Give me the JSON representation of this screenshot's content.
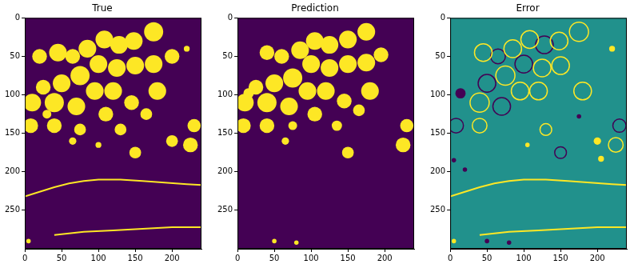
{
  "chart_data": [
    {
      "type": "image",
      "title": "True",
      "xlim": [
        0,
        240
      ],
      "ylim": [
        300,
        0
      ],
      "xticks": [
        0,
        50,
        100,
        150,
        200
      ],
      "yticks": [
        0,
        50,
        100,
        150,
        200,
        250
      ],
      "grid": false,
      "levels": [
        0,
        1
      ],
      "colors": [
        "#440154",
        "#fde725"
      ],
      "background": 0,
      "blobs": [
        {
          "value": 1,
          "x": [
            175,
            148,
            128,
            108,
            85,
            65,
            45,
            20,
            100,
            125,
            150,
            175,
            200,
            75,
            50,
            25,
            10,
            40,
            70,
            95,
            120,
            110,
            145,
            180,
            165,
            8,
            40,
            75,
            130,
            230,
            225,
            200,
            150,
            65,
            100,
            30,
            220,
            5
          ],
          "y": [
            18,
            30,
            35,
            28,
            40,
            50,
            45,
            50,
            60,
            65,
            62,
            60,
            50,
            75,
            85,
            90,
            110,
            110,
            115,
            95,
            95,
            125,
            110,
            95,
            125,
            140,
            140,
            145,
            145,
            140,
            165,
            160,
            175,
            160,
            165,
            125,
            40,
            290
          ],
          "r": [
            13,
            12,
            12,
            12,
            12,
            10,
            12,
            10,
            12,
            12,
            12,
            12,
            10,
            13,
            12,
            10,
            12,
            13,
            12,
            12,
            12,
            10,
            10,
            12,
            8,
            10,
            10,
            8,
            8,
            9,
            10,
            8,
            8,
            5,
            4,
            6,
            4,
            3
          ]
        }
      ],
      "lines": [
        {
          "value": 1,
          "x": [
            0,
            20,
            40,
            60,
            80,
            100,
            130,
            160,
            190,
            220,
            240
          ],
          "y": [
            232,
            226,
            220,
            215,
            212,
            210,
            210,
            212,
            214,
            216,
            217
          ]
        },
        {
          "value": 1,
          "x": [
            40,
            80,
            120,
            160,
            200,
            240
          ],
          "y": [
            282,
            278,
            276,
            274,
            272,
            272
          ]
        }
      ],
      "rings": []
    },
    {
      "type": "image",
      "title": "Prediction",
      "xlim": [
        0,
        240
      ],
      "ylim": [
        300,
        0
      ],
      "xticks": [
        0,
        50,
        100,
        150,
        200
      ],
      "yticks": [
        0,
        50,
        100,
        150,
        200,
        250
      ],
      "grid": false,
      "levels": [
        0,
        1
      ],
      "colors": [
        "#440154",
        "#fde725"
      ],
      "background": 0,
      "blobs": [
        {
          "value": 1,
          "x": [
            175,
            150,
            125,
            105,
            85,
            60,
            40,
            100,
            125,
            150,
            175,
            195,
            75,
            50,
            25,
            10,
            40,
            70,
            95,
            120,
            105,
            145,
            180,
            165,
            8,
            40,
            75,
            135,
            230,
            225,
            150,
            65,
            15,
            50,
            80
          ],
          "y": [
            18,
            28,
            35,
            30,
            42,
            50,
            45,
            60,
            65,
            60,
            58,
            48,
            78,
            85,
            90,
            110,
            110,
            115,
            95,
            95,
            125,
            108,
            95,
            120,
            140,
            140,
            140,
            140,
            140,
            165,
            175,
            160,
            98,
            290,
            292
          ],
          "r": [
            12,
            12,
            12,
            12,
            12,
            10,
            10,
            12,
            12,
            12,
            12,
            10,
            13,
            12,
            10,
            12,
            13,
            12,
            12,
            12,
            10,
            10,
            12,
            8,
            10,
            10,
            6,
            7,
            9,
            10,
            8,
            5,
            7,
            3,
            3
          ]
        }
      ],
      "lines": [],
      "rings": []
    },
    {
      "type": "image",
      "title": "Error",
      "xlim": [
        0,
        240
      ],
      "ylim": [
        300,
        0
      ],
      "xticks": [
        0,
        50,
        100,
        150,
        200
      ],
      "yticks": [
        0,
        50,
        100,
        150,
        200,
        250
      ],
      "grid": false,
      "levels": [
        -1,
        0,
        1
      ],
      "colors": [
        "#440154",
        "#21918c",
        "#fde725"
      ],
      "background": 0,
      "blobs": [
        {
          "value": -1,
          "x": [
            14,
            5,
            20,
            175,
            50,
            80
          ],
          "y": [
            98,
            185,
            197,
            128,
            290,
            292
          ],
          "r": [
            7,
            3,
            3,
            3,
            3,
            3
          ]
        },
        {
          "value": 1,
          "x": [
            205,
            105,
            200,
            220,
            5
          ],
          "y": [
            183,
            165,
            160,
            40,
            290
          ],
          "r": [
            4,
            3,
            5,
            4,
            3
          ]
        }
      ],
      "lines": [
        {
          "value": 1,
          "x": [
            0,
            20,
            40,
            60,
            80,
            100,
            130,
            160,
            190,
            220,
            240
          ],
          "y": [
            232,
            226,
            220,
            215,
            212,
            210,
            210,
            212,
            214,
            216,
            217
          ]
        },
        {
          "value": 1,
          "x": [
            40,
            80,
            120,
            160,
            200,
            240
          ],
          "y": [
            282,
            278,
            276,
            274,
            272,
            272
          ]
        }
      ],
      "rings": [
        {
          "value": 1,
          "x": [
            175,
            148,
            108,
            85,
            45,
            125,
            150,
            75,
            40,
            95,
            120,
            180,
            225,
            40,
            130
          ],
          "y": [
            18,
            30,
            28,
            40,
            45,
            65,
            62,
            75,
            110,
            95,
            95,
            95,
            165,
            140,
            145
          ],
          "r": [
            13,
            12,
            12,
            12,
            12,
            12,
            12,
            13,
            13,
            12,
            12,
            12,
            10,
            10,
            8
          ]
        },
        {
          "value": -1,
          "x": [
            128,
            65,
            100,
            50,
            70,
            8,
            230,
            150
          ],
          "y": [
            35,
            50,
            60,
            85,
            115,
            140,
            140,
            175
          ],
          "r": [
            12,
            10,
            12,
            12,
            12,
            10,
            9,
            8
          ]
        }
      ]
    }
  ]
}
